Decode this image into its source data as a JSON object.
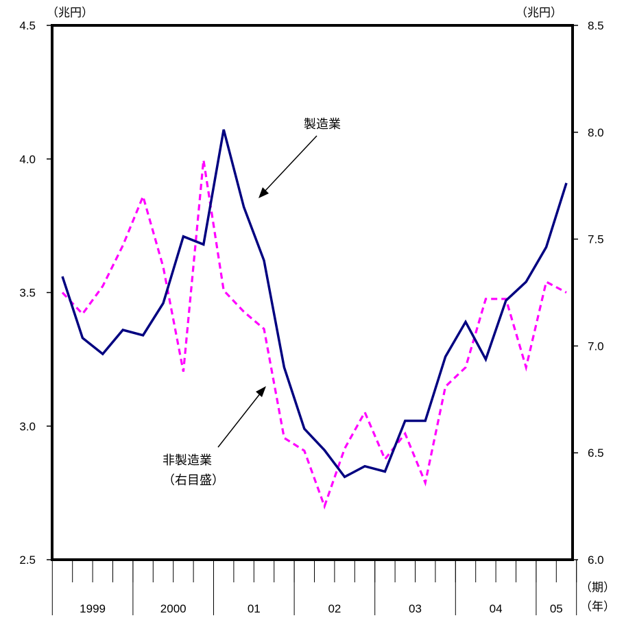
{
  "chart_data": {
    "type": "line",
    "x_quarters": [
      "1999Q1",
      "1999Q2",
      "1999Q3",
      "1999Q4",
      "2000Q1",
      "2000Q2",
      "2000Q3",
      "2000Q4",
      "2001Q1",
      "2001Q2",
      "2001Q3",
      "2001Q4",
      "2002Q1",
      "2002Q2",
      "2002Q3",
      "2002Q4",
      "2003Q1",
      "2003Q2",
      "2003Q3",
      "2003Q4",
      "2004Q1",
      "2004Q2",
      "2004Q3",
      "2004Q4",
      "2005Q1",
      "2005Q2"
    ],
    "x_axis_label": "（期）",
    "year_axis_label": "（年）",
    "year_labels": [
      {
        "label": "1999",
        "span": 4
      },
      {
        "label": "2000",
        "span": 4
      },
      {
        "label": "01",
        "span": 4
      },
      {
        "label": "02",
        "span": 4
      },
      {
        "label": "03",
        "span": 4
      },
      {
        "label": "04",
        "span": 4
      },
      {
        "label": "05",
        "span": 2
      }
    ],
    "y_left": {
      "unit": "（兆円）",
      "ylim": [
        2.5,
        4.5
      ],
      "ticks": [
        "2.5",
        "3.0",
        "3.5",
        "4.0",
        "4.5"
      ]
    },
    "y_right": {
      "unit": "（兆円）",
      "ylim": [
        6.0,
        8.5
      ],
      "ticks": [
        "6.0",
        "6.5",
        "7.0",
        "7.5",
        "8.0",
        "8.5"
      ]
    },
    "series": [
      {
        "name": "製造業",
        "axis": "left",
        "color": "#000080",
        "style": "solid",
        "values": [
          3.56,
          3.33,
          3.27,
          3.36,
          3.34,
          3.46,
          3.71,
          3.68,
          4.11,
          3.82,
          3.62,
          3.22,
          2.99,
          2.91,
          2.81,
          2.85,
          2.83,
          3.02,
          3.02,
          3.26,
          3.39,
          3.25,
          3.47,
          3.54,
          3.67,
          3.91
        ]
      },
      {
        "name": "非製造業",
        "axis": "right",
        "color": "#ff00ff",
        "style": "dashed",
        "values": [
          7.25,
          7.15,
          7.28,
          7.47,
          7.7,
          7.37,
          6.88,
          7.87,
          7.26,
          7.16,
          7.08,
          6.57,
          6.51,
          6.25,
          6.52,
          6.69,
          6.47,
          6.59,
          6.36,
          6.81,
          6.9,
          7.22,
          7.22,
          6.9,
          7.3,
          7.25
        ]
      }
    ],
    "annotations": {
      "manufacturing": "製造業",
      "non_manufacturing": "非製造業",
      "non_manufacturing_note": "（右目盛）"
    },
    "grid": false
  }
}
